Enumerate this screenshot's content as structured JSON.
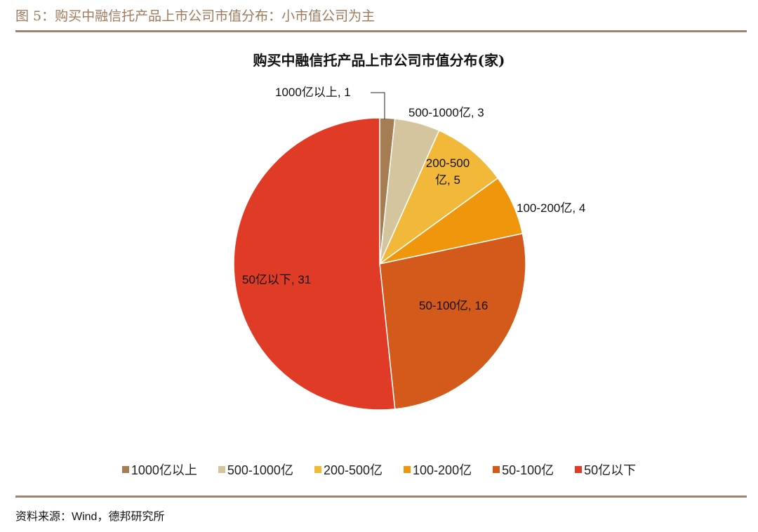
{
  "figure_title": "图 5：购买中融信托产品上市公司市值分布：小市值公司为主",
  "source": "资料来源：Wind，德邦研究所",
  "chart_data": {
    "type": "pie",
    "title": "购买中融信托产品上市公司市值分布(家)",
    "categories": [
      "1000亿以上",
      "500-1000亿",
      "200-500亿",
      "100-200亿",
      "50-100亿",
      "50亿以下"
    ],
    "values": [
      1,
      3,
      5,
      4,
      16,
      31
    ],
    "colors": [
      "#a67c52",
      "#d5c59e",
      "#f2b83a",
      "#f0960c",
      "#d45a1b",
      "#e03b27"
    ],
    "data_labels": [
      "1000亿以上, 1",
      "500-1000亿, 3",
      "200-500亿, 5",
      "100-200亿, 4",
      "50-100亿, 16",
      "50亿以下, 31"
    ],
    "start": "top",
    "direction": "clockwise",
    "legend_position": "bottom"
  }
}
